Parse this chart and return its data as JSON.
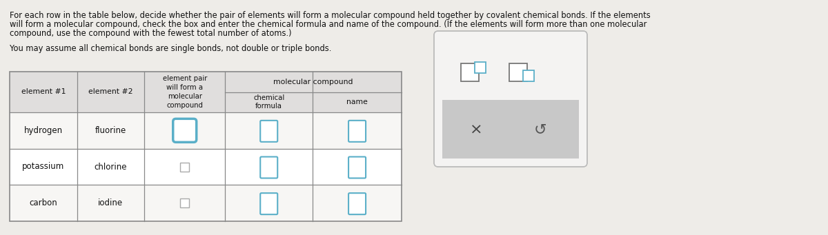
{
  "title_line1": "For each row in the table below, decide whether the pair of elements will form a molecular compound held together by covalent chemical bonds. If the elements",
  "title_line2": "will form a molecular compound, check the box and enter the chemical formula and name of the compound. (If the elements will form more than one molecular",
  "title_line3": "compound, use the compound with the fewest total number of atoms.)",
  "subtitle": "You may assume all chemical bonds are single bonds, not double or triple bonds.",
  "bg_color": "#eeece8",
  "table_border_color": "#888888",
  "header_bg": "#e0dedd",
  "row_bg": "#f7f6f4",
  "rows": [
    [
      "hydrogen",
      "fluorine"
    ],
    [
      "potassium",
      "chlorine"
    ],
    [
      "carbon",
      "iodine"
    ]
  ],
  "checkbox_blue": "#5aafc8",
  "checkbox_gray": "#aaaaaa",
  "panel_bg": "#f4f3f2",
  "panel_border": "#bbbbbb",
  "panel_gray_bar": "#c8c8c8"
}
